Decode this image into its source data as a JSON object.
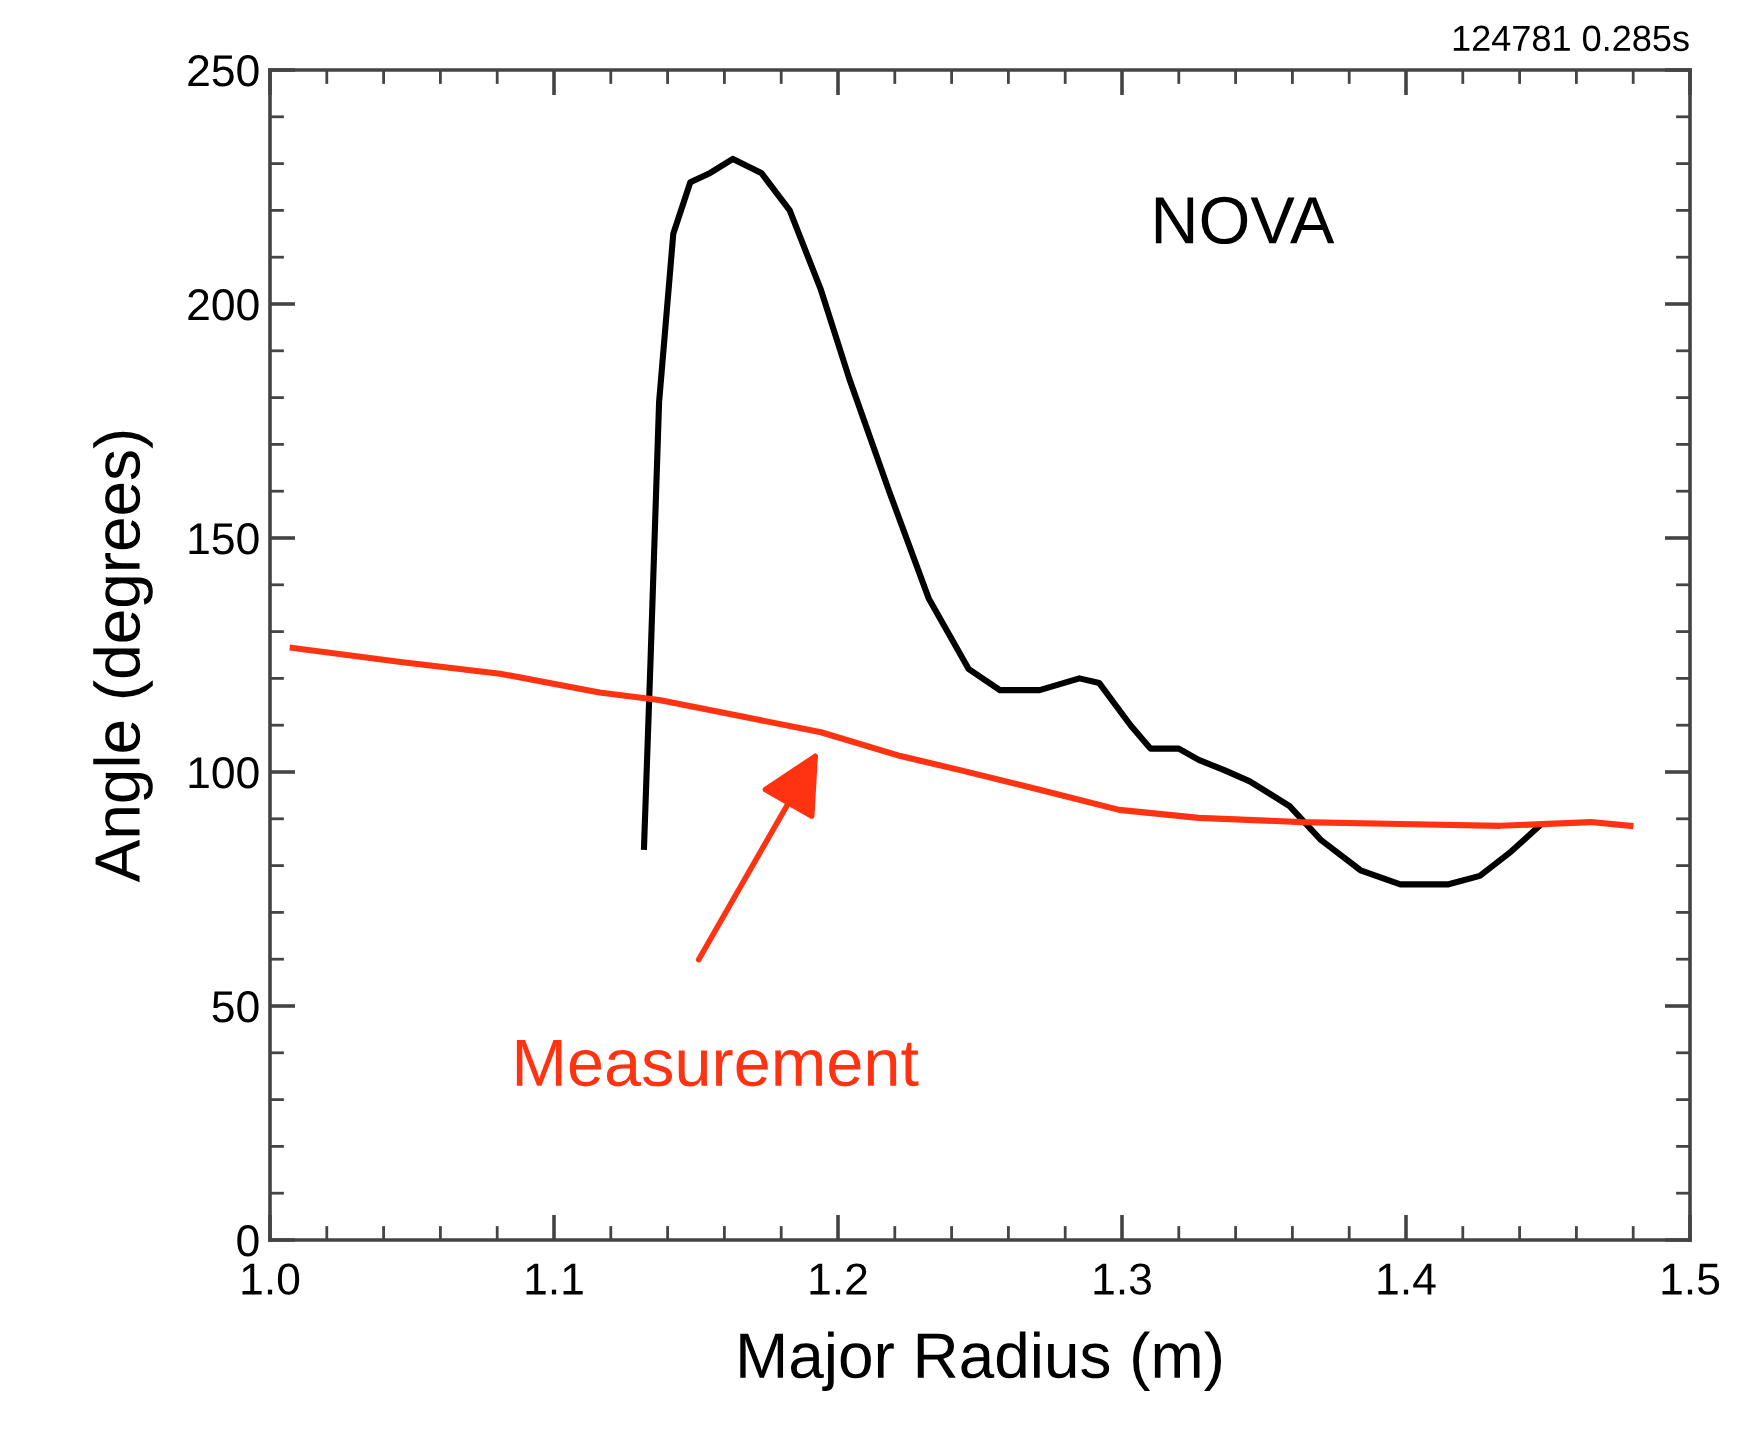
{
  "chart_data": {
    "type": "line",
    "xlabel": "Major Radius (m)",
    "ylabel": "Angle (degrees)",
    "annotations": [
      "124781 0.285s"
    ],
    "xlim": [
      1.0,
      1.5
    ],
    "xticks": [
      {
        "value": 1.0,
        "label": "1.0"
      },
      1.1,
      1.2,
      1.3,
      1.4,
      1.5
    ],
    "ylim": [
      0,
      250
    ],
    "yticks": [
      0,
      50,
      100,
      150,
      200,
      250
    ],
    "grid": false,
    "legend": false,
    "marker": "none",
    "line_style": "solid",
    "series": [
      {
        "name": "NOVA",
        "color": "#000000",
        "x": [
          1.1317,
          1.134,
          1.137,
          1.142,
          1.148,
          1.155,
          1.163,
          1.173,
          1.183,
          1.194,
          1.204,
          1.218,
          1.232,
          1.246,
          1.257,
          1.271,
          1.285,
          1.292,
          1.303,
          1.31,
          1.32,
          1.327,
          1.336,
          1.345,
          1.359,
          1.37,
          1.384,
          1.398,
          1.415,
          1.426,
          1.437,
          1.447
        ],
        "values": [
          84,
          124,
          179,
          215,
          226,
          228,
          231,
          228,
          220,
          203,
          184,
          160,
          137,
          122,
          117.5,
          117.5,
          120,
          119,
          110,
          105,
          105,
          102.6,
          100.4,
          98,
          92.7,
          85.5,
          79,
          76,
          76,
          77.8,
          83,
          88.5
        ]
      },
      {
        "name": "Measurement",
        "color": "#ff3311",
        "x": [
          1.008,
          1.046,
          1.081,
          1.116,
          1.137,
          1.165,
          1.194,
          1.222,
          1.243,
          1.271,
          1.299,
          1.327,
          1.363,
          1.398,
          1.433,
          1.465,
          1.479
        ],
        "values": [
          126.5,
          123.5,
          121,
          117,
          115.4,
          112,
          108.5,
          103.4,
          100.4,
          96.2,
          91.9,
          90.2,
          89.3,
          88.9,
          88.5,
          89.3,
          88.5
        ]
      }
    ]
  }
}
